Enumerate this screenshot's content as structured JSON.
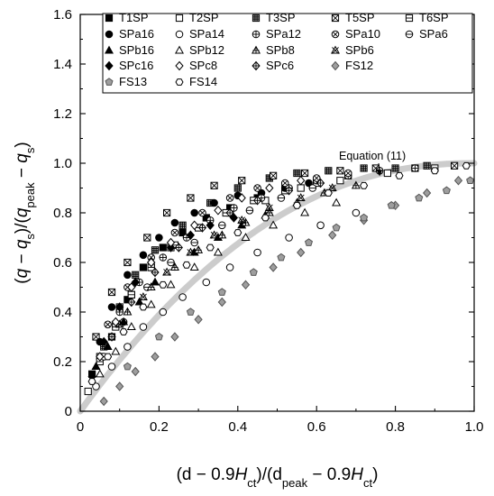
{
  "chart_data": {
    "type": "scatter",
    "xlabel": "(d − 0.9H_ct)/(d_peak − 0.9H_ct)",
    "xlabel_parts": [
      {
        "t": "(d − 0.9"
      },
      {
        "t": "H"
      },
      {
        "t": "ct",
        "sub": true
      },
      {
        "t": ")/(d"
      },
      {
        "t": "peak",
        "sub": true
      },
      {
        "t": " − 0.9"
      },
      {
        "t": "H"
      },
      {
        "t": "ct",
        "sub": true
      },
      {
        "t": ")"
      }
    ],
    "ylabel": "(q − q_s)/(q_peak − q_s)",
    "ylabel_parts": [
      {
        "t": "("
      },
      {
        "t": "q"
      },
      {
        "t": " − "
      },
      {
        "t": "q"
      },
      {
        "t": "s",
        "sub": true
      },
      {
        "t": ")/("
      },
      {
        "t": "q"
      },
      {
        "t": "peak",
        "sub": true
      },
      {
        "t": " − "
      },
      {
        "t": "q"
      },
      {
        "t": "s",
        "sub": true
      },
      {
        "t": ")"
      }
    ],
    "xlim": [
      0,
      1.0
    ],
    "ylim": [
      0,
      1.6
    ],
    "xticks": [
      "0",
      "0.2",
      "0.4",
      "0.6",
      "0.8",
      "1.0"
    ],
    "yticks": [
      "0",
      "0.2",
      "0.4",
      "0.6",
      "0.8",
      "1.0",
      "1.2",
      "1.4",
      "1.6"
    ],
    "grid": false,
    "legend_position": "top",
    "annotation": {
      "text": "Equation (11)",
      "x": 0.76,
      "y": 0.94
    },
    "fit_curve": {
      "name": "Equation (11)",
      "color": "#cccccc"
    },
    "legend": [
      {
        "name": "T1SP",
        "marker": "square-filled"
      },
      {
        "name": "T2SP",
        "marker": "square-open"
      },
      {
        "name": "T3SP",
        "marker": "square-grid"
      },
      {
        "name": "T5SP",
        "marker": "square-x"
      },
      {
        "name": "T6SP",
        "marker": "square-hbar"
      },
      {
        "name": "SPa16",
        "marker": "circle-filled"
      },
      {
        "name": "SPa14",
        "marker": "circle-open"
      },
      {
        "name": "SPa12",
        "marker": "circle-plus"
      },
      {
        "name": "SPa10",
        "marker": "circle-x"
      },
      {
        "name": "SPa6",
        "marker": "circle-hbar"
      },
      {
        "name": "SPb16",
        "marker": "triangle-filled"
      },
      {
        "name": "SPb12",
        "marker": "triangle-open"
      },
      {
        "name": "SPb8",
        "marker": "triangle-plus"
      },
      {
        "name": "SPb6",
        "marker": "triangle-x"
      },
      {
        "name": "SPc16",
        "marker": "diamond-filled"
      },
      {
        "name": "SPc8",
        "marker": "diamond-open"
      },
      {
        "name": "SPc6",
        "marker": "diamond-plus"
      },
      {
        "name": "FS12",
        "marker": "diamond-gray"
      },
      {
        "name": "FS13",
        "marker": "pentagon-gray"
      },
      {
        "name": "FS14",
        "marker": "hexagon-open"
      }
    ],
    "series": [
      {
        "name": "T1SP",
        "marker": "square-filled",
        "x": [
          0.03,
          0.08,
          0.12,
          0.16,
          0.21,
          0.26,
          0.32,
          0.38,
          0.45,
          0.52,
          0.6,
          0.68
        ],
        "y": [
          0.15,
          0.3,
          0.45,
          0.58,
          0.66,
          0.72,
          0.78,
          0.82,
          0.86,
          0.9,
          0.93,
          0.95
        ]
      },
      {
        "name": "T2SP",
        "marker": "square-open",
        "x": [
          0.02,
          0.05,
          0.09,
          0.13,
          0.18,
          0.23,
          0.3,
          0.38,
          0.47,
          0.56,
          0.66,
          0.78,
          0.9
        ],
        "y": [
          0.08,
          0.22,
          0.35,
          0.47,
          0.58,
          0.66,
          0.74,
          0.8,
          0.85,
          0.9,
          0.93,
          0.96,
          0.98
        ]
      },
      {
        "name": "T3SP",
        "marker": "square-grid",
        "x": [
          0.06,
          0.1,
          0.14,
          0.19,
          0.26,
          0.33,
          0.4,
          0.48,
          0.55,
          0.63,
          0.72,
          0.8,
          0.88
        ],
        "y": [
          0.26,
          0.42,
          0.55,
          0.65,
          0.75,
          0.84,
          0.9,
          0.94,
          0.96,
          0.97,
          0.98,
          0.98,
          0.99
        ]
      },
      {
        "name": "T5SP",
        "marker": "square-x",
        "x": [
          0.04,
          0.08,
          0.12,
          0.17,
          0.22,
          0.28,
          0.34,
          0.41,
          0.49,
          0.57,
          0.66,
          0.75,
          0.85,
          0.95
        ],
        "y": [
          0.3,
          0.48,
          0.6,
          0.7,
          0.8,
          0.86,
          0.91,
          0.93,
          0.95,
          0.96,
          0.97,
          0.98,
          0.98,
          0.99
        ]
      },
      {
        "name": "T6SP",
        "marker": "square-hbar",
        "x": [
          0.05,
          0.09,
          0.13,
          0.18,
          0.24,
          0.3,
          0.37,
          0.44,
          0.52,
          0.6
        ],
        "y": [
          0.2,
          0.34,
          0.47,
          0.58,
          0.67,
          0.74,
          0.8,
          0.85,
          0.89,
          0.92
        ]
      },
      {
        "name": "SPa16",
        "marker": "circle-filled",
        "x": [
          0.05,
          0.08,
          0.12,
          0.16,
          0.2,
          0.24,
          0.29,
          0.34,
          0.4,
          0.46,
          0.52,
          0.58
        ],
        "y": [
          0.28,
          0.42,
          0.55,
          0.63,
          0.7,
          0.76,
          0.8,
          0.84,
          0.87,
          0.88,
          0.9,
          0.92
        ]
      },
      {
        "name": "SPa14",
        "marker": "circle-open",
        "x": [
          0.04,
          0.08,
          0.12,
          0.16,
          0.21,
          0.26,
          0.32,
          0.38,
          0.45,
          0.53,
          0.61,
          0.7
        ],
        "y": [
          0.1,
          0.18,
          0.26,
          0.34,
          0.4,
          0.46,
          0.52,
          0.58,
          0.64,
          0.7,
          0.75,
          0.8
        ]
      },
      {
        "name": "SPa12",
        "marker": "circle-plus",
        "x": [
          0.1,
          0.15,
          0.21,
          0.27,
          0.33,
          0.39,
          0.46,
          0.53,
          0.6,
          0.68,
          0.76,
          0.85
        ],
        "y": [
          0.4,
          0.52,
          0.62,
          0.7,
          0.77,
          0.82,
          0.86,
          0.9,
          0.93,
          0.95,
          0.97,
          0.98
        ]
      },
      {
        "name": "SPa10",
        "marker": "circle-x",
        "x": [
          0.07,
          0.12,
          0.18,
          0.24,
          0.31,
          0.38,
          0.45,
          0.52,
          0.6,
          0.68
        ],
        "y": [
          0.35,
          0.5,
          0.62,
          0.72,
          0.8,
          0.86,
          0.9,
          0.92,
          0.94,
          0.96
        ]
      },
      {
        "name": "SPa6",
        "marker": "circle-hbar",
        "x": [
          0.06,
          0.11,
          0.17,
          0.23,
          0.29,
          0.36,
          0.43,
          0.51,
          0.59
        ],
        "y": [
          0.22,
          0.36,
          0.5,
          0.6,
          0.68,
          0.75,
          0.81,
          0.86,
          0.9
        ]
      },
      {
        "name": "SPb16",
        "marker": "triangle-filled",
        "x": [
          0.04,
          0.07,
          0.11,
          0.15,
          0.19,
          0.24,
          0.29,
          0.35,
          0.41,
          0.47
        ],
        "y": [
          0.18,
          0.26,
          0.36,
          0.44,
          0.52,
          0.58,
          0.64,
          0.7,
          0.75,
          0.79
        ]
      },
      {
        "name": "SPb12",
        "marker": "triangle-open",
        "x": [
          0.05,
          0.09,
          0.13,
          0.18,
          0.23,
          0.29,
          0.35,
          0.42,
          0.49,
          0.57,
          0.65
        ],
        "y": [
          0.15,
          0.24,
          0.34,
          0.43,
          0.51,
          0.58,
          0.64,
          0.7,
          0.75,
          0.8,
          0.84
        ]
      },
      {
        "name": "SPb8",
        "marker": "triangle-plus",
        "x": [
          0.12,
          0.18,
          0.24,
          0.3,
          0.36,
          0.42,
          0.48,
          0.55,
          0.62,
          0.7
        ],
        "y": [
          0.4,
          0.5,
          0.58,
          0.65,
          0.71,
          0.76,
          0.8,
          0.84,
          0.88,
          0.91
        ]
      },
      {
        "name": "SPb6",
        "marker": "triangle-x",
        "x": [
          0.1,
          0.16,
          0.22,
          0.28,
          0.34,
          0.41,
          0.48,
          0.56,
          0.64
        ],
        "y": [
          0.35,
          0.46,
          0.56,
          0.64,
          0.71,
          0.77,
          0.82,
          0.86,
          0.9
        ]
      },
      {
        "name": "SPc16",
        "marker": "diamond-filled",
        "x": [
          0.03,
          0.06,
          0.1,
          0.14,
          0.18,
          0.23,
          0.28,
          0.33,
          0.39
        ],
        "y": [
          0.14,
          0.28,
          0.42,
          0.52,
          0.6,
          0.66,
          0.71,
          0.75,
          0.78
        ]
      },
      {
        "name": "SPc8",
        "marker": "diamond-open",
        "x": [
          0.05,
          0.09,
          0.13,
          0.18,
          0.23,
          0.29,
          0.35,
          0.41,
          0.48,
          0.56
        ],
        "y": [
          0.22,
          0.36,
          0.5,
          0.6,
          0.68,
          0.75,
          0.81,
          0.86,
          0.9,
          0.93
        ]
      },
      {
        "name": "SPc6",
        "marker": "diamond-plus",
        "x": [
          0.08,
          0.13,
          0.19,
          0.25,
          0.31,
          0.38,
          0.45,
          0.53,
          0.61
        ],
        "y": [
          0.3,
          0.44,
          0.56,
          0.66,
          0.74,
          0.8,
          0.85,
          0.89,
          0.92
        ]
      },
      {
        "name": "FS12",
        "marker": "diamond-gray",
        "x": [
          0.06,
          0.1,
          0.14,
          0.19,
          0.24,
          0.3,
          0.36,
          0.42,
          0.49,
          0.56,
          0.64,
          0.72,
          0.8,
          0.88,
          0.96
        ],
        "y": [
          0.04,
          0.1,
          0.16,
          0.22,
          0.3,
          0.37,
          0.44,
          0.51,
          0.58,
          0.64,
          0.71,
          0.77,
          0.83,
          0.88,
          0.93
        ]
      },
      {
        "name": "FS13",
        "marker": "pentagon-gray",
        "x": [
          0.12,
          0.2,
          0.28,
          0.36,
          0.44,
          0.51,
          0.58,
          0.65,
          0.72,
          0.79,
          0.86,
          0.93,
          0.99
        ],
        "y": [
          0.18,
          0.3,
          0.4,
          0.48,
          0.56,
          0.62,
          0.68,
          0.74,
          0.78,
          0.83,
          0.86,
          0.89,
          0.93
        ]
      },
      {
        "name": "FS14",
        "marker": "hexagon-open",
        "x": [
          0.03,
          0.07,
          0.11,
          0.16,
          0.21,
          0.27,
          0.33,
          0.4,
          0.47,
          0.55,
          0.63,
          0.72,
          0.81,
          0.9,
          0.98
        ],
        "y": [
          0.12,
          0.22,
          0.32,
          0.42,
          0.51,
          0.59,
          0.66,
          0.72,
          0.78,
          0.83,
          0.88,
          0.91,
          0.95,
          0.97,
          0.99
        ]
      }
    ]
  }
}
